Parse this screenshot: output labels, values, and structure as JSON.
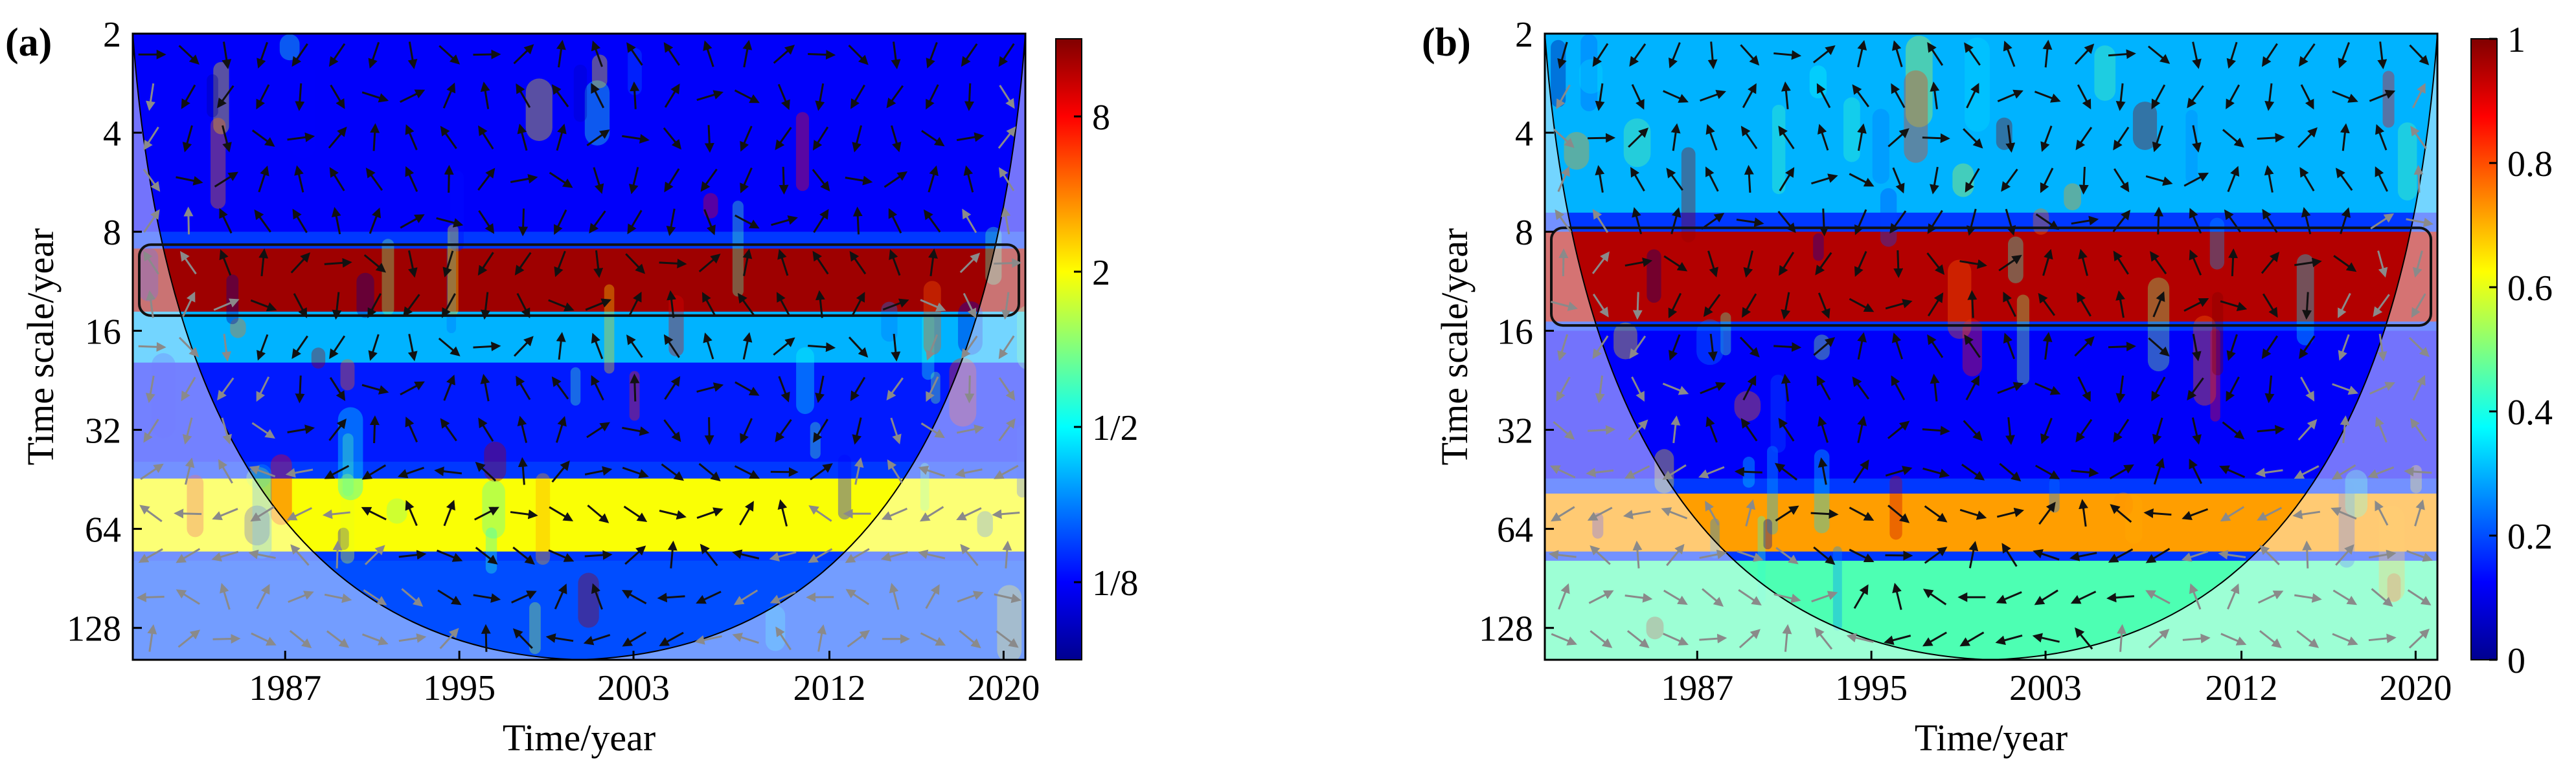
{
  "chart_data": [
    {
      "type": "heatmap",
      "subtype": "cross-wavelet-transform",
      "panel_label": "(a)",
      "xlabel": "Time/year",
      "ylabel": "Time scale/year",
      "xlim": [
        1980,
        2021
      ],
      "ylim": [
        2,
        160
      ],
      "yscale": "log2",
      "x_ticks": [
        1987,
        1995,
        2003,
        2012,
        2020
      ],
      "x_tick_labels": [
        "1987",
        "1995",
        "2003",
        "2012",
        "2020"
      ],
      "y_ticks": [
        2,
        4,
        8,
        16,
        32,
        64,
        128
      ],
      "y_tick_labels": [
        "2",
        "4",
        "8",
        "16",
        "32",
        "64",
        "128"
      ],
      "colorbar": {
        "scale": "log2",
        "range": [
          0.0625,
          16
        ],
        "ticks": [
          0.125,
          0.5,
          2,
          8
        ],
        "tick_labels": [
          "1/8",
          "1/2",
          "2",
          "8"
        ]
      },
      "bands": [
        {
          "scale_min": 2,
          "scale_max": 8,
          "level": 0.12
        },
        {
          "scale_min": 9,
          "scale_max": 14,
          "level": 0.97
        },
        {
          "scale_min": 14,
          "scale_max": 20,
          "level": 0.3
        },
        {
          "scale_min": 20,
          "scale_max": 40,
          "level": 0.15
        },
        {
          "scale_min": 45,
          "scale_max": 75,
          "level": 0.62
        },
        {
          "scale_min": 80,
          "scale_max": 160,
          "level": 0.2
        }
      ]
    },
    {
      "type": "heatmap",
      "subtype": "wavelet-coherence",
      "panel_label": "(b)",
      "xlabel": "Time/year",
      "ylabel": "Time scale/year",
      "xlim": [
        1980,
        2021
      ],
      "ylim": [
        2,
        160
      ],
      "yscale": "log2",
      "x_ticks": [
        1987,
        1995,
        2003,
        2012,
        2020
      ],
      "x_tick_labels": [
        "1987",
        "1995",
        "2003",
        "2012",
        "2020"
      ],
      "y_ticks": [
        2,
        4,
        8,
        16,
        32,
        64,
        128
      ],
      "y_tick_labels": [
        "2",
        "4",
        "8",
        "16",
        "32",
        "64",
        "128"
      ],
      "colorbar": {
        "scale": "linear",
        "range": [
          0,
          1
        ],
        "ticks": [
          0,
          0.2,
          0.4,
          0.6,
          0.8,
          1
        ],
        "tick_labels": [
          "0",
          "0.2",
          "0.4",
          "0.6",
          "0.8",
          "1"
        ]
      },
      "bands": [
        {
          "scale_min": 2,
          "scale_max": 7,
          "level": 0.3
        },
        {
          "scale_min": 8,
          "scale_max": 15,
          "level": 0.95
        },
        {
          "scale_min": 16,
          "scale_max": 45,
          "level": 0.12
        },
        {
          "scale_min": 50,
          "scale_max": 75,
          "level": 0.72
        },
        {
          "scale_min": 80,
          "scale_max": 160,
          "level": 0.45
        }
      ]
    }
  ]
}
